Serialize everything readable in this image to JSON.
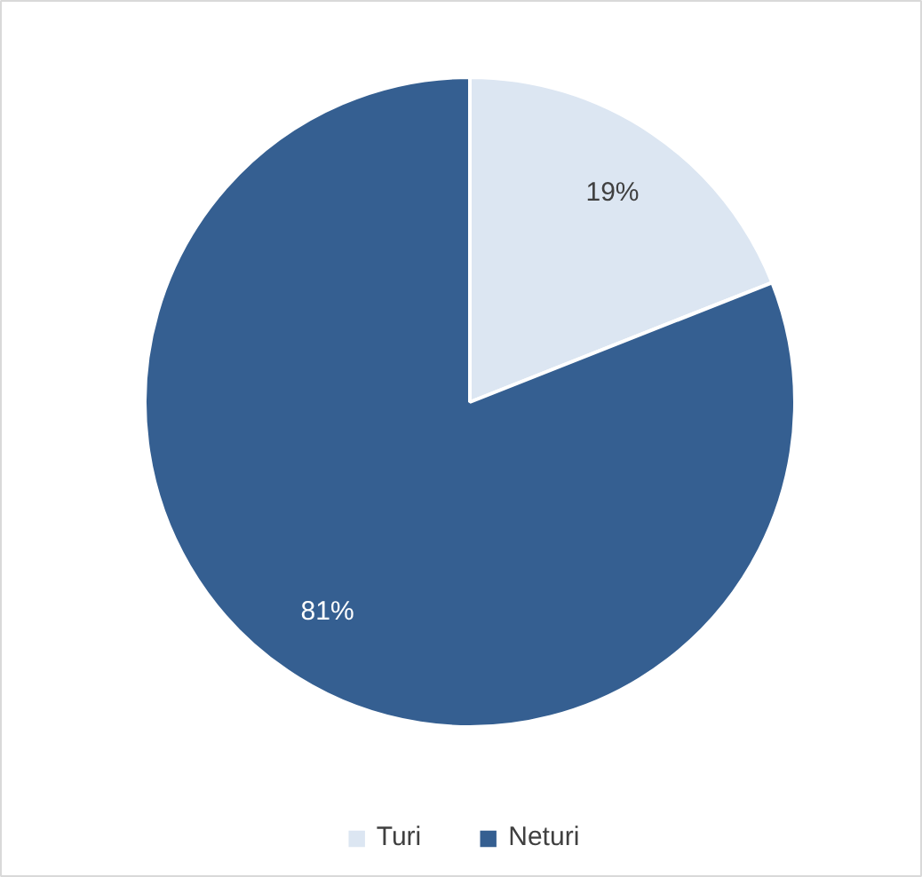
{
  "chart_data": {
    "type": "pie",
    "categories": [
      "Turi",
      "Neturi"
    ],
    "values": [
      19,
      81
    ],
    "colors": [
      "#dce6f2",
      "#355f91"
    ],
    "value_labels": [
      "19%",
      "81%"
    ],
    "legend": "bottom"
  }
}
